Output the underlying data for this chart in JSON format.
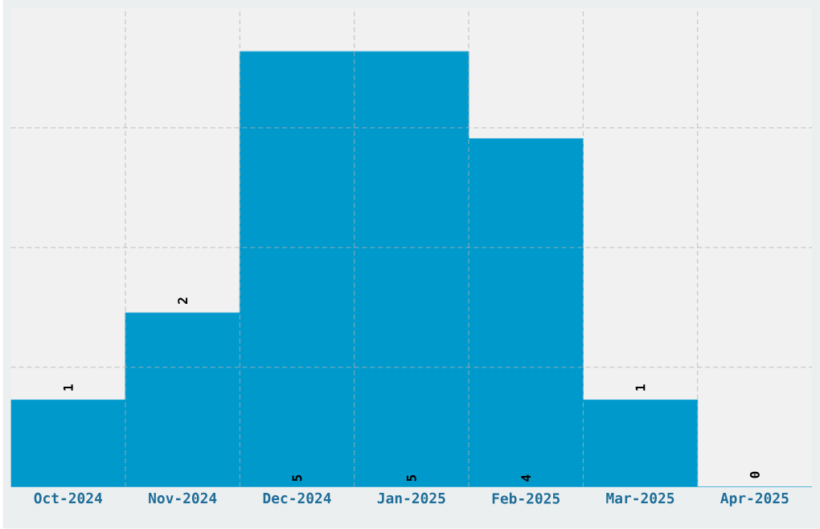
{
  "chart_data": {
    "type": "bar",
    "categories": [
      "Oct-2024",
      "Nov-2024",
      "Dec-2024",
      "Jan-2025",
      "Feb-2025",
      "Mar-2025",
      "Apr-2025"
    ],
    "values": [
      1,
      2,
      5,
      5,
      4,
      1,
      0
    ],
    "color": "#0099cc",
    "ylim": [
      0,
      5.5
    ],
    "yticks": [
      {
        "value": 1.375,
        "label": null
      },
      {
        "value": 2.75,
        "label": null
      },
      {
        "value": 4.125,
        "label": null
      }
    ],
    "tick_labels": "x",
    "grid": true,
    "data_labels": true
  }
}
